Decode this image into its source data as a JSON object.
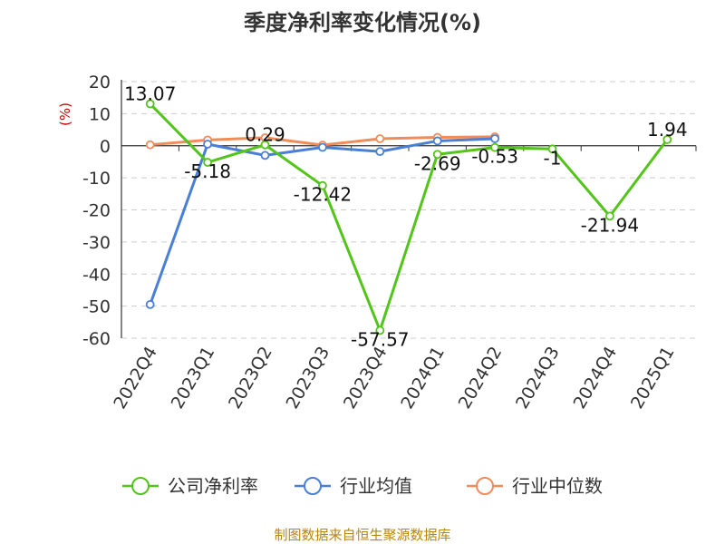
{
  "chart_data": {
    "type": "line",
    "title": "季度净利率变化情况(%)",
    "ylabel": "(%)",
    "ylim": [
      -60,
      20
    ],
    "yticks": [
      20,
      10,
      0,
      -10,
      -20,
      -30,
      -40,
      -50,
      -60
    ],
    "grid": true,
    "legend_position": "bottom",
    "categories": [
      "2022Q4",
      "2023Q1",
      "2023Q2",
      "2023Q3",
      "2023Q4",
      "2024Q1",
      "2024Q2",
      "2024Q3",
      "2024Q4",
      "2025Q1"
    ],
    "series": [
      {
        "name": "公司净利率",
        "color": "#52c41a",
        "values": [
          13.07,
          -5.18,
          0.29,
          -12.42,
          -57.57,
          -2.69,
          -0.53,
          -1,
          -21.94,
          1.94
        ],
        "labels": [
          "13.07",
          "-5.18",
          "0.29",
          "-12.42",
          "-57.57",
          "-2.69",
          "-0.53",
          "-1",
          "-21.94",
          "1.94"
        ]
      },
      {
        "name": "行业均值",
        "color": "#4a7fd6",
        "values": [
          -49.5,
          0.5,
          -3,
          -0.5,
          -1.8,
          1.5,
          2.2,
          null,
          null,
          null
        ]
      },
      {
        "name": "行业中位数",
        "color": "#f08c5a",
        "values": [
          0.3,
          1.8,
          2.5,
          0.2,
          2.2,
          2.6,
          2.8,
          null,
          null,
          null
        ]
      }
    ]
  },
  "source": "制图数据来自恒生聚源数据库"
}
